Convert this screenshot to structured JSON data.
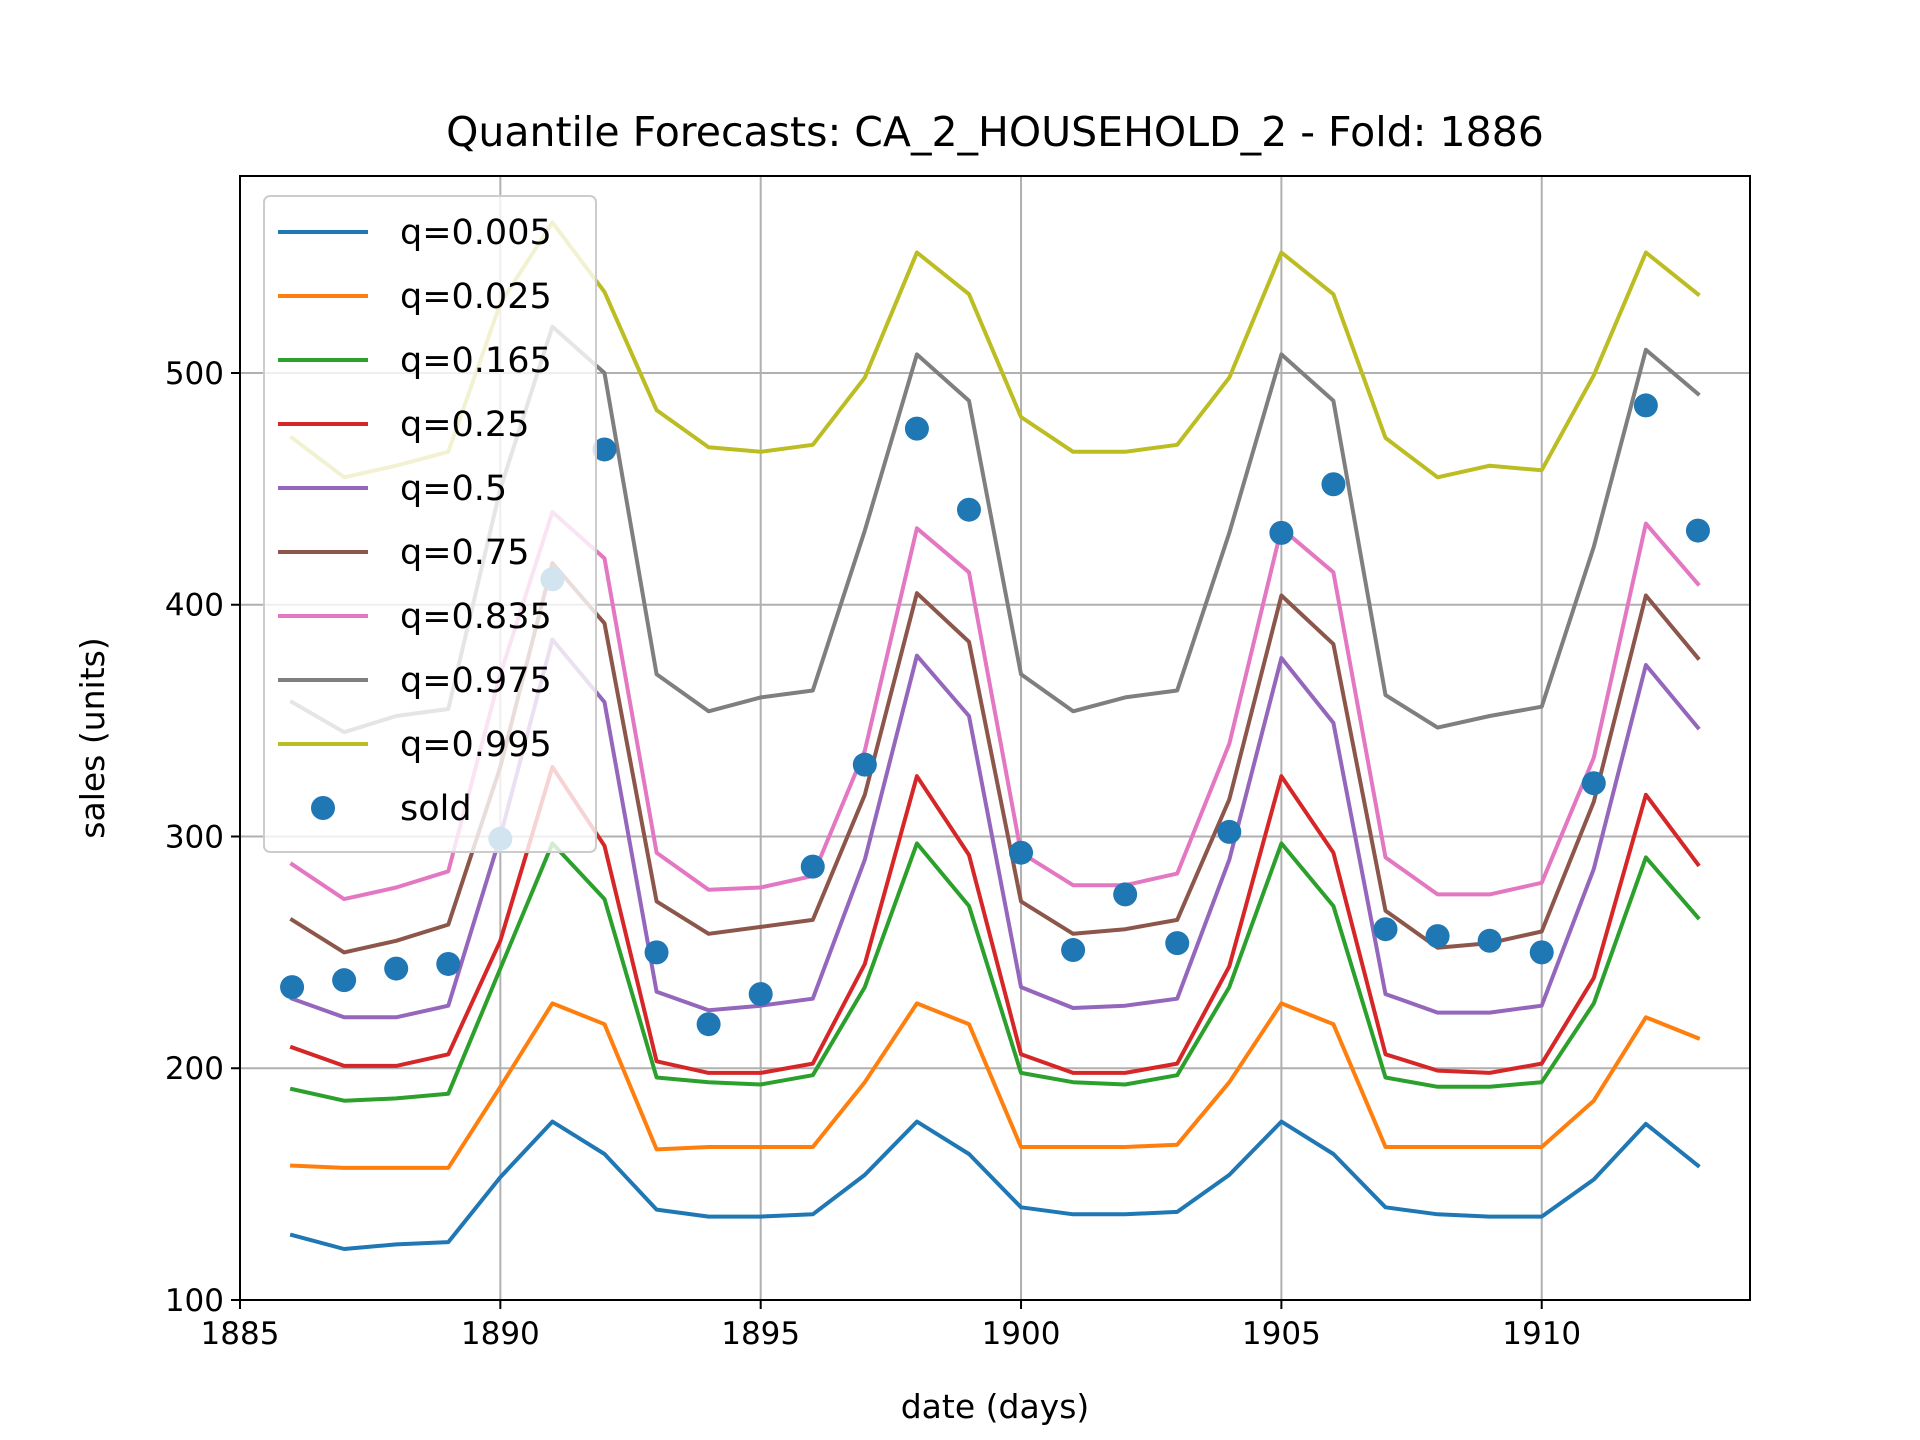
{
  "chart_data": {
    "type": "line",
    "title": "Quantile Forecasts: CA_2_HOUSEHOLD_2 - Fold: 1886",
    "xlabel": "date (days)",
    "ylabel": "sales (units)",
    "xlim": [
      1885,
      1914
    ],
    "ylim": [
      100,
      585
    ],
    "xticks": [
      1885,
      1890,
      1895,
      1900,
      1905,
      1910
    ],
    "yticks": [
      100,
      200,
      300,
      400,
      500
    ],
    "grid": true,
    "legend_position": "upper-left",
    "x": [
      1886,
      1887,
      1888,
      1889,
      1890,
      1891,
      1892,
      1893,
      1894,
      1895,
      1896,
      1897,
      1898,
      1899,
      1900,
      1901,
      1902,
      1903,
      1904,
      1905,
      1906,
      1907,
      1908,
      1909,
      1910,
      1911,
      1912,
      1913
    ],
    "series": [
      {
        "name": "q=0.005",
        "color": "#1f77b4",
        "values": [
          128,
          122,
          124,
          125,
          153,
          177,
          163,
          139,
          136,
          136,
          137,
          154,
          177,
          163,
          140,
          137,
          137,
          138,
          154,
          177,
          163,
          140,
          137,
          136,
          136,
          152,
          176,
          158
        ]
      },
      {
        "name": "q=0.025",
        "color": "#ff7f0e",
        "values": [
          158,
          157,
          157,
          157,
          192,
          228,
          219,
          165,
          166,
          166,
          166,
          194,
          228,
          219,
          166,
          166,
          166,
          167,
          194,
          228,
          219,
          166,
          166,
          166,
          166,
          186,
          222,
          213
        ]
      },
      {
        "name": "q=0.165",
        "color": "#2ca02c",
        "values": [
          191,
          186,
          187,
          189,
          243,
          297,
          273,
          196,
          194,
          193,
          197,
          235,
          297,
          270,
          198,
          194,
          193,
          197,
          235,
          297,
          270,
          196,
          192,
          192,
          194,
          228,
          291,
          265
        ]
      },
      {
        "name": "q=0.25",
        "color": "#d62728",
        "values": [
          209,
          201,
          201,
          206,
          255,
          330,
          296,
          203,
          198,
          198,
          202,
          245,
          326,
          292,
          206,
          198,
          198,
          202,
          244,
          326,
          293,
          206,
          199,
          198,
          202,
          239,
          318,
          288
        ]
      },
      {
        "name": "q=0.5",
        "color": "#9467bd",
        "values": [
          230,
          222,
          222,
          227,
          300,
          385,
          358,
          233,
          225,
          227,
          230,
          290,
          378,
          352,
          235,
          226,
          227,
          230,
          290,
          377,
          349,
          232,
          224,
          224,
          227,
          286,
          374,
          347
        ]
      },
      {
        "name": "q=0.75",
        "color": "#8c564b",
        "values": [
          264,
          250,
          255,
          262,
          330,
          418,
          392,
          272,
          258,
          261,
          264,
          318,
          405,
          384,
          272,
          258,
          260,
          264,
          316,
          404,
          383,
          268,
          252,
          254,
          259,
          315,
          404,
          377
        ]
      },
      {
        "name": "q=0.835",
        "color": "#e377c2",
        "values": [
          288,
          273,
          278,
          285,
          370,
          440,
          420,
          293,
          277,
          278,
          283,
          337,
          433,
          414,
          293,
          279,
          279,
          284,
          340,
          433,
          414,
          291,
          275,
          275,
          280,
          334,
          435,
          409
        ]
      },
      {
        "name": "q=0.975",
        "color": "#7f7f7f",
        "values": [
          358,
          345,
          352,
          355,
          450,
          520,
          500,
          370,
          354,
          360,
          363,
          432,
          508,
          488,
          370,
          354,
          360,
          363,
          431,
          508,
          488,
          361,
          347,
          352,
          356,
          425,
          510,
          491
        ]
      },
      {
        "name": "q=0.995",
        "color": "#bcbd22",
        "values": [
          472,
          455,
          460,
          466,
          530,
          565,
          535,
          484,
          468,
          466,
          469,
          498,
          552,
          534,
          481,
          466,
          466,
          469,
          498,
          552,
          534,
          472,
          455,
          460,
          458,
          499,
          552,
          534
        ]
      }
    ],
    "scatter": {
      "name": "sold",
      "color": "#1f77b4",
      "values": [
        235,
        238,
        243,
        245,
        299,
        411,
        467,
        250,
        219,
        232,
        287,
        331,
        476,
        441,
        293,
        251,
        275,
        254,
        302,
        431,
        452,
        260,
        257,
        255,
        250,
        323,
        486,
        432
      ]
    }
  }
}
